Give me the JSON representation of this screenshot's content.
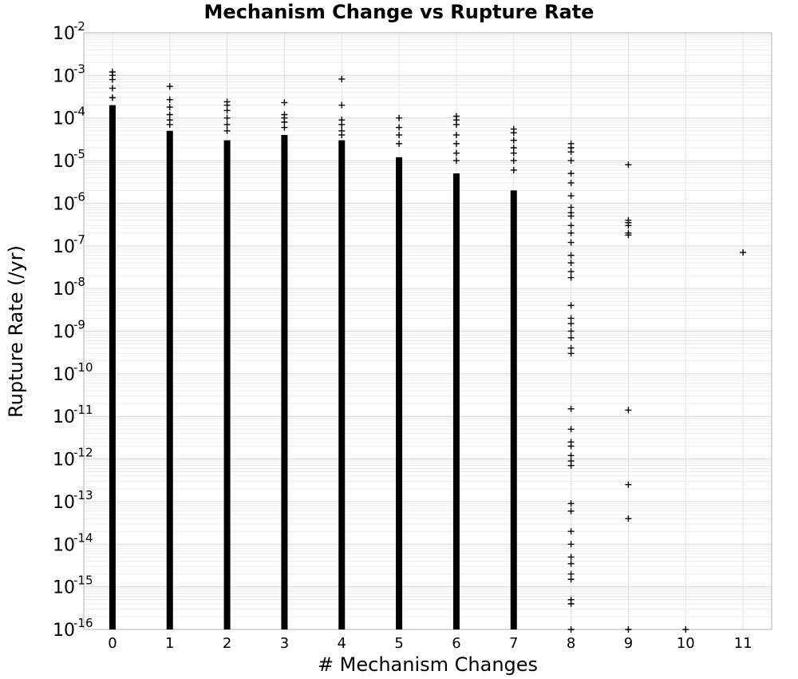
{
  "chart_data": {
    "type": "scatter",
    "title": "Mechanism Change vs Rupture Rate",
    "xlabel": "# Mechanism Changes",
    "ylabel": "Rupture Rate (/yr)",
    "xlim": [
      -0.5,
      11.5
    ],
    "ylim": [
      1e-16,
      0.01
    ],
    "yscale": "log",
    "grid": true,
    "marker": "plus",
    "marker_color": "#000000",
    "x_ticks": [
      "0",
      "1",
      "2",
      "3",
      "4",
      "5",
      "6",
      "7",
      "8",
      "9",
      "10",
      "11"
    ],
    "y_ticks": [
      {
        "base": "10",
        "exp": "-2"
      },
      {
        "base": "10",
        "exp": "-3"
      },
      {
        "base": "10",
        "exp": "-4"
      },
      {
        "base": "10",
        "exp": "-5"
      },
      {
        "base": "10",
        "exp": "-6"
      },
      {
        "base": "10",
        "exp": "-7"
      },
      {
        "base": "10",
        "exp": "-8"
      },
      {
        "base": "10",
        "exp": "-9"
      },
      {
        "base": "10",
        "exp": "-10"
      },
      {
        "base": "10",
        "exp": "-11"
      },
      {
        "base": "10",
        "exp": "-12"
      },
      {
        "base": "10",
        "exp": "-13"
      },
      {
        "base": "10",
        "exp": "-14"
      },
      {
        "base": "10",
        "exp": "-15"
      },
      {
        "base": "10",
        "exp": "-16"
      }
    ],
    "columns": [
      {
        "x": 0,
        "dense_min": 1e-16,
        "dense_max": 0.0002,
        "outliers": [
          0.0012,
          0.001,
          0.0008,
          0.0005,
          0.0003
        ]
      },
      {
        "x": 1,
        "dense_min": 1e-16,
        "dense_max": 5e-05,
        "outliers": [
          0.00055,
          0.00027,
          0.00018,
          0.00012,
          9e-05,
          7e-05
        ]
      },
      {
        "x": 2,
        "dense_min": 1e-16,
        "dense_max": 3e-05,
        "outliers": [
          0.00024,
          0.0002,
          0.00015,
          0.0001,
          7e-05,
          5e-05
        ]
      },
      {
        "x": 3,
        "dense_min": 1e-16,
        "dense_max": 4e-05,
        "outliers": [
          0.00023,
          0.00012,
          0.0001,
          8e-05,
          6e-05
        ]
      },
      {
        "x": 4,
        "dense_min": 1e-16,
        "dense_max": 3e-05,
        "outliers": [
          0.00082,
          0.0002,
          9e-05,
          7e-05,
          5e-05,
          4e-05
        ]
      },
      {
        "x": 5,
        "dense_min": 1e-16,
        "dense_max": 1.2e-05,
        "outliers": [
          0.0001,
          6e-05,
          4e-05,
          2.5e-05
        ]
      },
      {
        "x": 6,
        "dense_min": 1e-16,
        "dense_max": 5e-06,
        "outliers": [
          0.00011,
          9e-05,
          7e-05,
          4e-05,
          2.5e-05,
          1.5e-05,
          1e-05
        ]
      },
      {
        "x": 7,
        "dense_min": 1e-16,
        "dense_max": 2e-06,
        "outliers": [
          5.5e-05,
          4.5e-05,
          3e-05,
          2e-05,
          1.5e-05,
          1e-05,
          6e-06
        ]
      },
      {
        "x": 8,
        "dense_min": null,
        "dense_max": null,
        "outliers": [
          2.5e-05,
          2e-05,
          1.6e-05,
          1e-05,
          5e-06,
          3e-06,
          1.5e-06,
          8e-07,
          6e-07,
          5e-07,
          3e-07,
          2e-07,
          1.2e-07,
          6e-08,
          4e-08,
          2.5e-08,
          1.8e-08,
          4e-09,
          2e-09,
          1.5e-09,
          1e-09,
          7e-10,
          4e-10,
          3e-10,
          1.5e-11,
          5e-12,
          2.5e-12,
          2e-12,
          1.2e-12,
          9e-13,
          7e-13,
          9e-14,
          6e-14,
          2e-14,
          1e-14,
          5e-15,
          3.5e-15,
          2e-15,
          1.5e-15,
          5e-16,
          4e-16,
          1e-16
        ]
      },
      {
        "x": 9,
        "dense_min": null,
        "dense_max": null,
        "outliers": [
          8e-06,
          4e-07,
          3.5e-07,
          3e-07,
          2e-07,
          1.8e-07,
          1.4e-11,
          2.5e-13,
          4e-14,
          1e-16
        ]
      },
      {
        "x": 10,
        "dense_min": null,
        "dense_max": null,
        "outliers": [
          1e-16
        ]
      },
      {
        "x": 11,
        "dense_min": null,
        "dense_max": null,
        "outliers": [
          7e-08
        ]
      }
    ]
  }
}
